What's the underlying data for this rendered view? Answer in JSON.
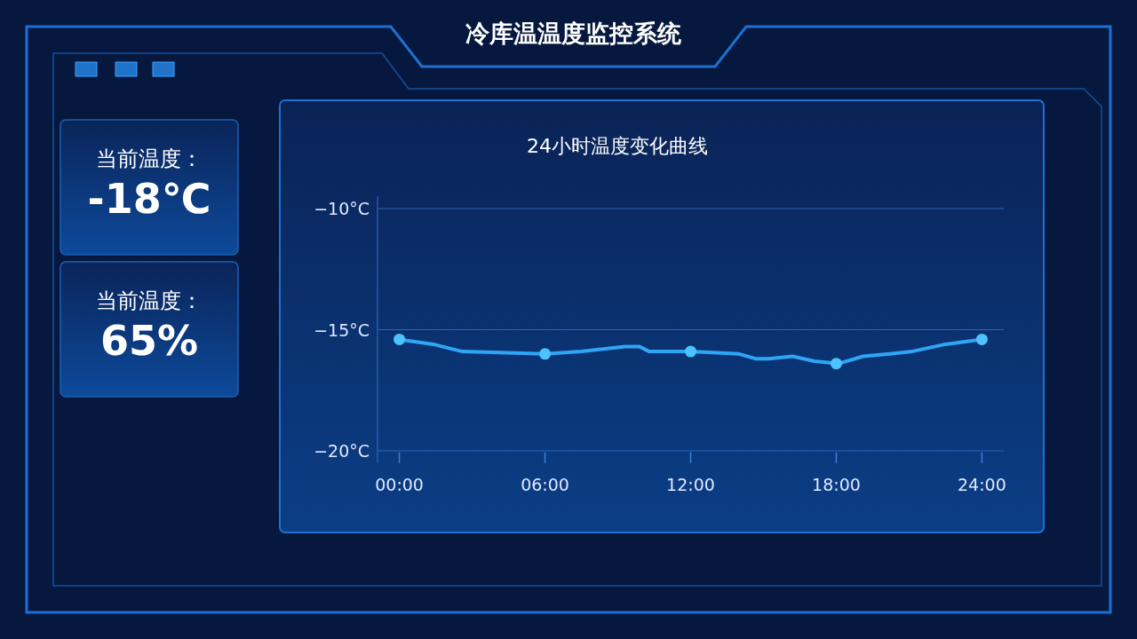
{
  "chart_data": [
    {
      "type": "other",
      "title": "当前温度：",
      "annotations": [
        "-18℃"
      ]
    },
    {
      "type": "other",
      "title": "当前温度：",
      "annotations": [
        "65%"
      ]
    },
    {
      "type": "line",
      "title": "冷库温温度监控系统",
      "subtitle": "24小时温度变化曲线",
      "xlim": [
        -0.9,
        24.9
      ],
      "xticks": [
        {
          "value": 0,
          "label": "00:00"
        },
        {
          "value": 6,
          "label": "06:00"
        },
        {
          "value": 12,
          "label": "12:00"
        },
        {
          "value": 18,
          "label": "18:00"
        },
        {
          "value": 24,
          "label": "24:00"
        }
      ],
      "ylim": [
        -20.5,
        -9.5
      ],
      "yticks": [
        {
          "value": -20,
          "label": "−20°C"
        },
        {
          "value": -15,
          "label": "−15°C"
        },
        {
          "value": -10,
          "label": "−10°C"
        }
      ],
      "grid": "y",
      "line_style": "solid",
      "series": [
        {
          "type": "line",
          "marker": "none",
          "color": "#2ea6f5",
          "x": [
            0,
            1.4,
            2.6,
            6,
            7.5,
            9.3,
            9.9,
            10.3,
            12,
            14,
            14.7,
            15.2,
            16.2,
            17.1,
            18.1,
            19.1,
            20.2,
            21.1,
            22.5,
            24
          ],
          "values": [
            -15.4,
            -15.6,
            -15.9,
            -16.0,
            -15.9,
            -15.7,
            -15.7,
            -15.9,
            -15.9,
            -16.0,
            -16.2,
            -16.2,
            -16.1,
            -16.3,
            -16.4,
            -16.1,
            -16.0,
            -15.9,
            -15.6,
            -15.4
          ]
        },
        {
          "type": "scatter",
          "marker": "circle",
          "color": "#4cc3ff",
          "x": [
            0,
            6,
            12,
            18,
            24
          ],
          "values": [
            -15.4,
            -16.0,
            -15.9,
            -16.4,
            -15.4
          ]
        }
      ]
    }
  ]
}
